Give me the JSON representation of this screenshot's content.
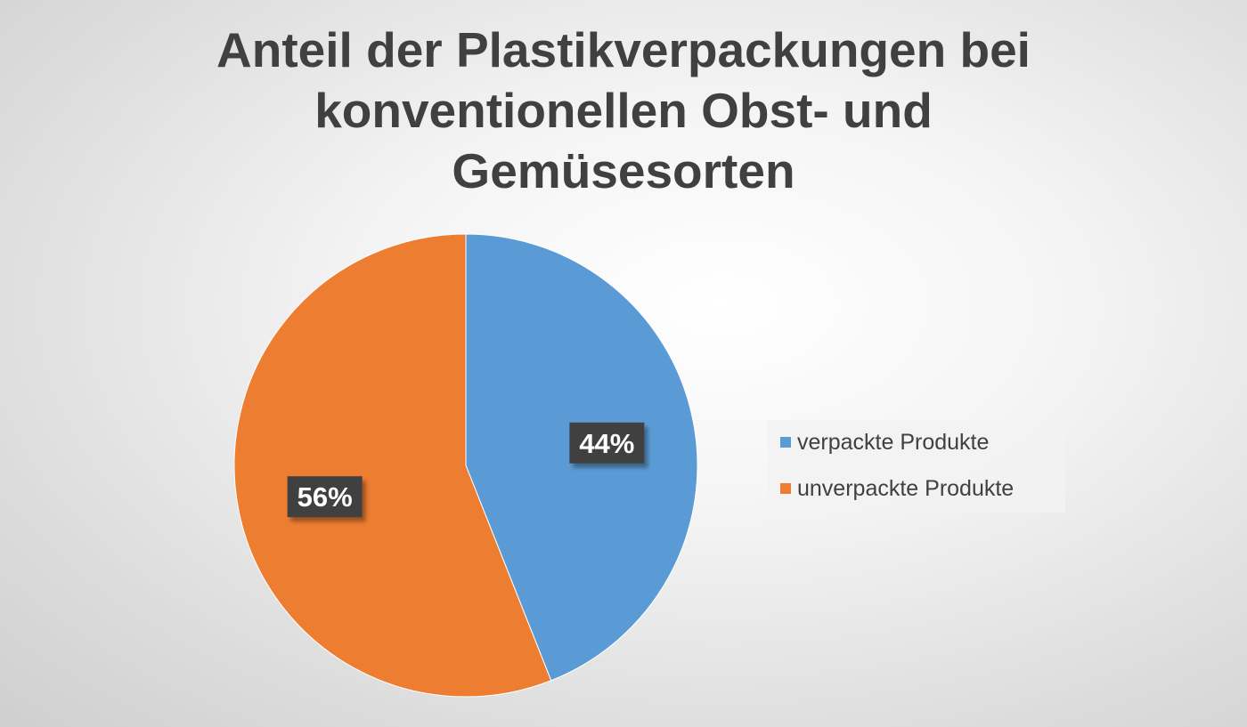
{
  "chart_data": {
    "type": "pie",
    "title_lines": [
      "Anteil der Plastikverpackungen bei",
      "konventionellen Obst- und",
      "Gemüsesorten"
    ],
    "categories": [
      "verpackte Produkte",
      "unverpackte Produkte"
    ],
    "values": [
      44,
      56
    ],
    "value_labels": [
      "44%",
      "56%"
    ],
    "colors": [
      "#5B9BD5",
      "#ED7D31"
    ],
    "legend_position": "right"
  },
  "colors": {
    "label_box": "#404040",
    "label_text": "#ffffff",
    "title_text": "#404040"
  }
}
